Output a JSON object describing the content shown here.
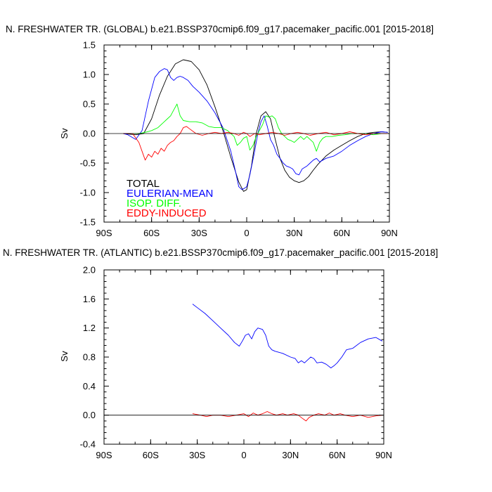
{
  "chart_data": [
    {
      "type": "line",
      "title": "N. FRESHWATER TR. (GLOBAL) b.e21.BSSP370cmip6.f09_g17.pacemaker_pacific.001 [2015-2018]",
      "xlabel": "",
      "ylabel": "Sv",
      "xlim": [
        -90,
        90
      ],
      "ylim": [
        -1.5,
        1.5
      ],
      "xticks": [
        -90,
        -60,
        -30,
        0,
        30,
        60,
        90
      ],
      "xtick_labels": [
        "90S",
        "60S",
        "30S",
        "0",
        "30N",
        "60N",
        "90N"
      ],
      "yticks": [
        -1.5,
        -1.0,
        -0.5,
        0.0,
        0.5,
        1.0,
        1.5
      ],
      "ytick_labels": [
        "-1.5",
        "-1.0",
        "-0.5",
        "0.0",
        "0.5",
        "1.0",
        "1.5"
      ],
      "zero_line": true,
      "legend": [
        "TOTAL",
        "EULERIAN-MEAN",
        "ISOP. DIFF.",
        "EDDY-INDUCED"
      ],
      "legend_placement": "bottom-left",
      "series": [
        {
          "name": "TOTAL",
          "color": "#000000",
          "x": [
            -78,
            -70,
            -65,
            -60,
            -55,
            -50,
            -45,
            -40,
            -35,
            -30,
            -25,
            -20,
            -15,
            -10,
            -5,
            -2,
            0,
            3,
            6,
            9,
            12,
            15,
            18,
            21,
            24,
            27,
            30,
            33,
            36,
            39,
            42,
            45,
            50,
            55,
            60,
            65,
            70,
            75,
            80,
            85,
            89
          ],
          "y": [
            0.0,
            -0.02,
            0.0,
            0.25,
            0.65,
            0.97,
            1.18,
            1.25,
            1.22,
            1.08,
            0.82,
            0.45,
            0.05,
            -0.4,
            -0.82,
            -0.98,
            -0.95,
            -0.55,
            0.0,
            0.3,
            0.37,
            0.25,
            -0.1,
            -0.42,
            -0.62,
            -0.74,
            -0.8,
            -0.83,
            -0.8,
            -0.73,
            -0.62,
            -0.52,
            -0.38,
            -0.28,
            -0.2,
            -0.12,
            -0.05,
            0.0,
            0.02,
            0.03,
            0.02
          ]
        },
        {
          "name": "EULERIAN-MEAN",
          "color": "#0000ff",
          "x": [
            -78,
            -75,
            -70,
            -66,
            -62,
            -58,
            -55,
            -52,
            -50,
            -48,
            -46,
            -44,
            -42,
            -40,
            -37,
            -34,
            -30,
            -25,
            -20,
            -15,
            -10,
            -7,
            -5,
            -3,
            -1,
            0,
            2,
            5,
            7,
            9,
            11,
            13,
            15,
            17,
            19,
            21,
            23,
            25,
            27,
            29,
            31,
            33,
            35,
            38,
            40,
            42,
            44,
            46,
            48,
            50,
            55,
            60,
            65,
            70,
            75,
            80,
            85,
            89
          ],
          "y": [
            0.0,
            -0.02,
            -0.1,
            0.05,
            0.55,
            0.95,
            1.05,
            1.1,
            1.08,
            0.95,
            0.9,
            0.95,
            0.97,
            0.95,
            0.9,
            0.8,
            0.7,
            0.55,
            0.35,
            0.1,
            -0.3,
            -0.65,
            -0.9,
            -0.95,
            -0.92,
            -0.9,
            -0.7,
            -0.3,
            0.0,
            0.2,
            0.3,
            0.12,
            -0.1,
            -0.2,
            -0.35,
            -0.42,
            -0.5,
            -0.55,
            -0.57,
            -0.6,
            -0.68,
            -0.7,
            -0.6,
            -0.55,
            -0.5,
            -0.45,
            -0.42,
            -0.48,
            -0.45,
            -0.42,
            -0.38,
            -0.3,
            -0.2,
            -0.12,
            -0.05,
            0.0,
            0.03,
            0.02
          ]
        },
        {
          "name": "ISOP. DIFF.",
          "color": "#00ff00",
          "x": [
            -78,
            -72,
            -68,
            -64,
            -60,
            -56,
            -52,
            -50,
            -48,
            -46,
            -44,
            -42,
            -40,
            -36,
            -32,
            -28,
            -24,
            -20,
            -16,
            -12,
            -8,
            -6,
            -4,
            -2,
            0,
            2,
            4,
            6,
            8,
            10,
            12,
            14,
            16,
            18,
            20,
            22,
            24,
            26,
            28,
            30,
            32,
            34,
            36,
            38,
            40,
            42,
            44,
            46,
            48,
            50,
            54,
            58,
            62,
            66,
            70,
            75,
            80,
            85,
            89
          ],
          "y": [
            0.0,
            0.0,
            0.0,
            0.02,
            0.05,
            0.1,
            0.2,
            0.25,
            0.3,
            0.4,
            0.5,
            0.3,
            0.22,
            0.2,
            0.2,
            0.18,
            0.12,
            0.1,
            0.1,
            0.05,
            -0.05,
            -0.2,
            -0.15,
            -0.08,
            -0.05,
            -0.28,
            -0.2,
            -0.05,
            0.05,
            0.15,
            0.3,
            0.28,
            0.3,
            0.25,
            0.1,
            0.0,
            -0.05,
            -0.1,
            -0.12,
            -0.15,
            -0.1,
            -0.05,
            -0.1,
            -0.05,
            -0.1,
            -0.15,
            -0.3,
            -0.15,
            -0.08,
            -0.05,
            -0.05,
            -0.03,
            -0.02,
            0.0,
            0.0,
            0.0,
            -0.02,
            0.0,
            0.0
          ]
        },
        {
          "name": "EDDY-INDUCED",
          "color": "#ff0000",
          "x": [
            -78,
            -72,
            -68,
            -66,
            -64,
            -62,
            -60,
            -58,
            -56,
            -54,
            -52,
            -50,
            -48,
            -46,
            -44,
            -42,
            -40,
            -38,
            -36,
            -32,
            -28,
            -24,
            -20,
            -16,
            -12,
            -8,
            -5,
            -2,
            0,
            2,
            5,
            8,
            12,
            16,
            20,
            24,
            28,
            32,
            36,
            40,
            45,
            50,
            55,
            60,
            65,
            70,
            75,
            80,
            85,
            89
          ],
          "y": [
            0.0,
            0.0,
            -0.15,
            -0.3,
            -0.45,
            -0.35,
            -0.4,
            -0.3,
            -0.35,
            -0.25,
            -0.3,
            -0.2,
            -0.15,
            -0.12,
            -0.05,
            0.0,
            0.1,
            0.12,
            0.08,
            0.0,
            -0.03,
            0.0,
            0.02,
            0.0,
            0.02,
            0.0,
            -0.03,
            0.02,
            0.0,
            -0.05,
            0.0,
            -0.02,
            0.0,
            0.02,
            0.0,
            -0.03,
            0.0,
            0.02,
            0.0,
            -0.03,
            0.0,
            0.02,
            -0.02,
            0.0,
            0.03,
            0.0,
            -0.02,
            0.0,
            0.0,
            0.0
          ]
        },
        {
          "name": "zero",
          "color": "#000000",
          "x": [
            -90,
            90
          ],
          "y": [
            0,
            0
          ]
        }
      ]
    },
    {
      "type": "line",
      "title": "N. FRESHWATER TR. (ATLANTIC) b.e21.BSSP370cmip6.f09_g17.pacemaker_pacific.001 [2015-2018]",
      "xlabel": "",
      "ylabel": "Sv",
      "xlim": [
        -90,
        90
      ],
      "ylim": [
        -0.4,
        2.0
      ],
      "xticks": [
        -90,
        -60,
        -30,
        0,
        30,
        60,
        90
      ],
      "xtick_labels": [
        "90S",
        "60S",
        "30S",
        "0",
        "30N",
        "60N",
        "90N"
      ],
      "yticks": [
        -0.4,
        0.0,
        0.4,
        0.8,
        1.2,
        1.6,
        2.0
      ],
      "ytick_labels": [
        "-0.4",
        "0.0",
        "0.4",
        "0.8",
        "1.2",
        "1.6",
        "2.0"
      ],
      "zero_line": true,
      "series": [
        {
          "name": "EULERIAN-MEAN",
          "color": "#0000ff",
          "x": [
            -33,
            -30,
            -25,
            -20,
            -15,
            -10,
            -6,
            -3,
            -1,
            1,
            3,
            5,
            7,
            9,
            12,
            14,
            16,
            18,
            20,
            25,
            30,
            33,
            35,
            37,
            39,
            41,
            43,
            45,
            47,
            50,
            53,
            56,
            58,
            60,
            63,
            66,
            70,
            75,
            80,
            85,
            89
          ],
          "y": [
            1.53,
            1.48,
            1.4,
            1.3,
            1.2,
            1.1,
            1.0,
            0.95,
            1.02,
            1.1,
            1.12,
            1.05,
            1.15,
            1.2,
            1.18,
            1.1,
            0.95,
            0.9,
            0.88,
            0.85,
            0.8,
            0.78,
            0.72,
            0.75,
            0.72,
            0.76,
            0.8,
            0.78,
            0.72,
            0.73,
            0.7,
            0.65,
            0.68,
            0.72,
            0.8,
            0.9,
            0.92,
            1.0,
            1.05,
            1.07,
            1.02
          ]
        },
        {
          "name": "EDDY-INDUCED",
          "color": "#ff0000",
          "x": [
            -33,
            -28,
            -24,
            -20,
            -15,
            -10,
            -5,
            0,
            3,
            6,
            9,
            12,
            15,
            18,
            21,
            25,
            28,
            32,
            35,
            38,
            40,
            42,
            45,
            48,
            52,
            55,
            58,
            62,
            65,
            70,
            75,
            80,
            85,
            89
          ],
          "y": [
            0.02,
            0.0,
            -0.02,
            0.0,
            0.0,
            -0.02,
            0.0,
            0.02,
            -0.02,
            0.03,
            0.0,
            0.02,
            0.05,
            0.02,
            0.0,
            0.02,
            0.0,
            0.02,
            0.0,
            -0.05,
            -0.08,
            -0.03,
            0.0,
            0.02,
            0.0,
            0.03,
            0.0,
            0.02,
            0.0,
            -0.02,
            0.0,
            -0.03,
            -0.01,
            0.0
          ]
        },
        {
          "name": "zero",
          "color": "#000000",
          "x": [
            -90,
            90
          ],
          "y": [
            0,
            0
          ]
        }
      ]
    }
  ]
}
